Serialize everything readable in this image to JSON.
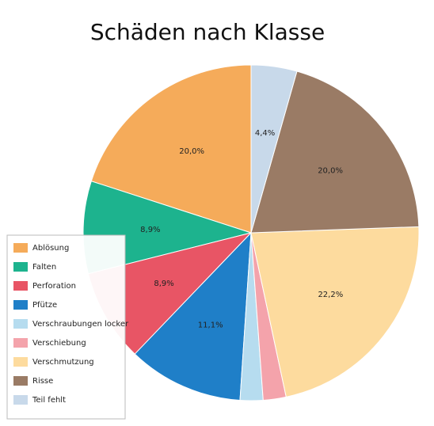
{
  "chart_data": {
    "type": "pie",
    "title": "Schäden nach Klasse",
    "categories": [
      "Ablösung",
      "Falten",
      "Perforation",
      "Pfütze",
      "Verschraubungen locker",
      "Verschiebung",
      "Verschmutzung",
      "Risse",
      "Teil fehlt"
    ],
    "values": [
      20.0,
      8.9,
      8.9,
      11.1,
      2.2,
      2.2,
      22.2,
      20.0,
      4.4
    ],
    "value_labels": [
      "20,0%",
      "8,9%",
      "8,9%",
      "11,1%",
      null,
      null,
      "22,2%",
      "20,0%",
      "4,4%"
    ],
    "colors": [
      "#f5ab5a",
      "#1db38e",
      "#e85565",
      "#1f7fc8",
      "#b6dcef",
      "#f4a3ab",
      "#fddb9e",
      "#9a7b65",
      "#c8d9ea"
    ],
    "legend": "lower left"
  }
}
